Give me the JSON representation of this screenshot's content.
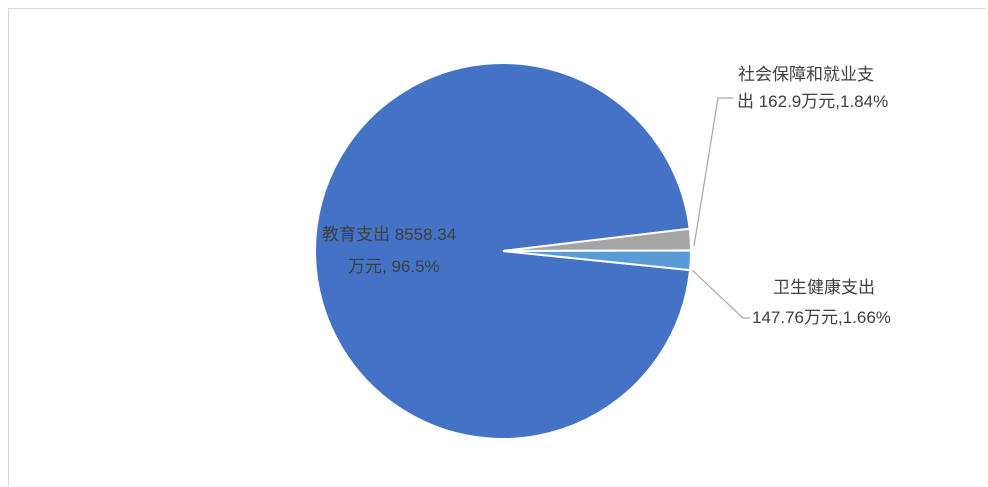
{
  "chart_data": {
    "type": "pie",
    "title": "",
    "categories": [
      "教育支出",
      "社会保障和就业支出",
      "卫生健康支出"
    ],
    "values": [
      8558.34,
      162.9,
      147.76
    ],
    "percents": [
      96.5,
      1.84,
      1.66
    ],
    "unit": "万元",
    "colors": [
      "#4472C4",
      "#A5A5A5",
      "#5B9BD5"
    ],
    "legend": "none",
    "data_labels": [
      {
        "lines": [
          "教育支出 8558.34",
          "万元, 96.5%"
        ]
      },
      {
        "lines": [
          "社会保障和就业支",
          "出 162.9万元,1.84%"
        ]
      },
      {
        "lines": [
          "卫生健康支出",
          "147.76万元,1.66%"
        ]
      }
    ]
  }
}
